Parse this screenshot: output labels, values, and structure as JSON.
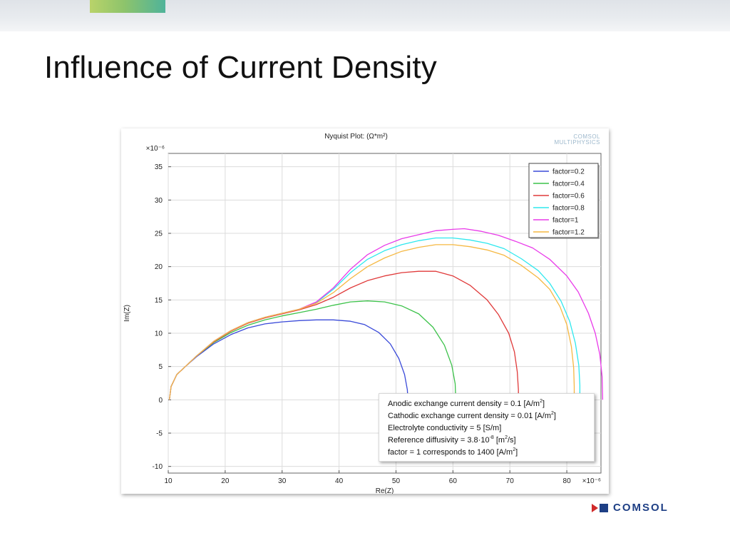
{
  "slide": {
    "title": "Influence of Current Density"
  },
  "watermark": {
    "line1": "COMSOL",
    "line2": "MULTIPHYSICS"
  },
  "brand": {
    "name": "COMSOL",
    "mark_colors": [
      "#d02a2a",
      "#1e3f85"
    ]
  },
  "info_box": {
    "lines": [
      {
        "text": "Anodic exchange current density = 0.1 [A/m",
        "sup": "2",
        "after": "]"
      },
      {
        "text": "Cathodic exchange current density = 0.01 [A/m",
        "sup": "2",
        "after": "]"
      },
      {
        "text": "Electrolyte conductivity = 5 [S/m]",
        "sup": "",
        "after": ""
      },
      {
        "text": "Reference diffusivity = 3.8·10",
        "sup": "-8",
        "after": " [m",
        "sup2": "2",
        "after2": "/s]"
      },
      {
        "text": "factor = 1 corresponds to 1400 [A/m",
        "sup": "2",
        "after": "]"
      }
    ]
  },
  "chart_data": {
    "type": "line",
    "title": "Nyquist Plot:  (Ω*m²)",
    "xlabel": "Re(Z)",
    "ylabel": "Im(Z)",
    "x_multiplier": "×10⁻⁶",
    "y_multiplier": "×10⁻⁶",
    "xlim": [
      10,
      86
    ],
    "ylim": [
      -11,
      37
    ],
    "xticks": [
      10,
      20,
      30,
      40,
      50,
      60,
      70,
      80
    ],
    "yticks": [
      -10,
      -5,
      0,
      5,
      10,
      15,
      20,
      25,
      30,
      35
    ],
    "grid": true,
    "legend_position": "top-right",
    "series": [
      {
        "name": "factor=0.2",
        "color": "#3b4bd9",
        "points": [
          [
            10.2,
            0
          ],
          [
            10.5,
            2
          ],
          [
            11.5,
            3.8
          ],
          [
            13,
            5
          ],
          [
            15,
            6.5
          ],
          [
            18,
            8.4
          ],
          [
            21,
            9.8
          ],
          [
            24,
            10.8
          ],
          [
            27,
            11.4
          ],
          [
            30,
            11.7
          ],
          [
            33,
            11.9
          ],
          [
            36,
            12.0
          ],
          [
            39,
            12.0
          ],
          [
            42,
            11.8
          ],
          [
            44.5,
            11.3
          ],
          [
            47,
            10.1
          ],
          [
            49,
            8.4
          ],
          [
            50.5,
            6.2
          ],
          [
            51.5,
            3.8
          ],
          [
            52,
            1.5
          ],
          [
            52.1,
            0
          ]
        ]
      },
      {
        "name": "factor=0.4",
        "color": "#3cc24a",
        "points": [
          [
            10.2,
            0
          ],
          [
            10.5,
            2
          ],
          [
            11.5,
            3.8
          ],
          [
            13,
            5
          ],
          [
            15,
            6.6
          ],
          [
            18,
            8.6
          ],
          [
            21,
            10.1
          ],
          [
            24,
            11.2
          ],
          [
            27,
            12
          ],
          [
            30,
            12.6
          ],
          [
            33,
            13.1
          ],
          [
            36,
            13.6
          ],
          [
            39,
            14.2
          ],
          [
            42,
            14.7
          ],
          [
            45,
            14.85
          ],
          [
            48,
            14.7
          ],
          [
            51,
            14.1
          ],
          [
            54,
            12.9
          ],
          [
            56.5,
            10.9
          ],
          [
            58.5,
            8.2
          ],
          [
            59.8,
            5.2
          ],
          [
            60.4,
            2.4
          ],
          [
            60.5,
            0
          ]
        ]
      },
      {
        "name": "factor=0.6",
        "color": "#e03a3a",
        "points": [
          [
            10.2,
            0
          ],
          [
            10.5,
            2
          ],
          [
            11.5,
            3.8
          ],
          [
            13,
            5
          ],
          [
            15,
            6.6
          ],
          [
            18,
            8.7
          ],
          [
            21,
            10.3
          ],
          [
            24,
            11.5
          ],
          [
            27,
            12.3
          ],
          [
            30,
            12.9
          ],
          [
            33,
            13.5
          ],
          [
            36,
            14.3
          ],
          [
            39,
            15.4
          ],
          [
            42,
            16.8
          ],
          [
            45,
            17.9
          ],
          [
            48,
            18.6
          ],
          [
            51,
            19.1
          ],
          [
            54,
            19.3
          ],
          [
            57,
            19.3
          ],
          [
            60,
            18.6
          ],
          [
            63,
            17.2
          ],
          [
            66,
            15
          ],
          [
            68,
            12.8
          ],
          [
            69.8,
            10
          ],
          [
            70.8,
            7.2
          ],
          [
            71.3,
            4.2
          ],
          [
            71.5,
            1.5
          ],
          [
            71.5,
            0
          ]
        ]
      },
      {
        "name": "factor=0.8",
        "color": "#2ee8ee",
        "points": [
          [
            10.2,
            0
          ],
          [
            10.5,
            2
          ],
          [
            11.5,
            3.8
          ],
          [
            13,
            5
          ],
          [
            15,
            6.6
          ],
          [
            18,
            8.8
          ],
          [
            21,
            10.4
          ],
          [
            24,
            11.6
          ],
          [
            27,
            12.4
          ],
          [
            30,
            13
          ],
          [
            33,
            13.6
          ],
          [
            36,
            14.6
          ],
          [
            39,
            16.6
          ],
          [
            42,
            19.1
          ],
          [
            45,
            21.1
          ],
          [
            48,
            22.4
          ],
          [
            51,
            23.3
          ],
          [
            54,
            23.9
          ],
          [
            57,
            24.3
          ],
          [
            60,
            24.3
          ],
          [
            63,
            24
          ],
          [
            66,
            23.5
          ],
          [
            69,
            22.7
          ],
          [
            72,
            21.2
          ],
          [
            75,
            19.4
          ],
          [
            77,
            17.5
          ],
          [
            79,
            14.8
          ],
          [
            80.5,
            11.8
          ],
          [
            81.5,
            8.5
          ],
          [
            82.1,
            5.2
          ],
          [
            82.3,
            2.2
          ],
          [
            82.3,
            0
          ]
        ]
      },
      {
        "name": "factor=1",
        "color": "#e93ae9",
        "points": [
          [
            10.2,
            0
          ],
          [
            10.5,
            2
          ],
          [
            11.5,
            3.8
          ],
          [
            13,
            5
          ],
          [
            15,
            6.6
          ],
          [
            18,
            8.8
          ],
          [
            21,
            10.4
          ],
          [
            24,
            11.6
          ],
          [
            27,
            12.4
          ],
          [
            30,
            13
          ],
          [
            33,
            13.6
          ],
          [
            36,
            14.7
          ],
          [
            39,
            16.8
          ],
          [
            42,
            19.6
          ],
          [
            45,
            21.8
          ],
          [
            48,
            23.2
          ],
          [
            51,
            24.2
          ],
          [
            54,
            24.8
          ],
          [
            57,
            25.4
          ],
          [
            60,
            25.6
          ],
          [
            62,
            25.7
          ],
          [
            65,
            25.3
          ],
          [
            68,
            24.7
          ],
          [
            71,
            23.8
          ],
          [
            74,
            22.8
          ],
          [
            77,
            21.1
          ],
          [
            80,
            18.6
          ],
          [
            82,
            16.2
          ],
          [
            83.8,
            13
          ],
          [
            85,
            10
          ],
          [
            85.8,
            6.8
          ],
          [
            86.2,
            3.5
          ],
          [
            86.3,
            0
          ]
        ]
      },
      {
        "name": "factor=1.2",
        "color": "#f5b842",
        "points": [
          [
            10.2,
            0
          ],
          [
            10.5,
            2
          ],
          [
            11.5,
            3.8
          ],
          [
            13,
            5
          ],
          [
            15,
            6.6
          ],
          [
            18,
            8.8
          ],
          [
            21,
            10.4
          ],
          [
            24,
            11.6
          ],
          [
            27,
            12.4
          ],
          [
            30,
            13
          ],
          [
            33,
            13.6
          ],
          [
            36,
            14.5
          ],
          [
            39,
            16.1
          ],
          [
            42,
            18.2
          ],
          [
            45,
            20
          ],
          [
            48,
            21.3
          ],
          [
            51,
            22.3
          ],
          [
            54,
            22.9
          ],
          [
            57,
            23.3
          ],
          [
            60,
            23.3
          ],
          [
            63,
            23
          ],
          [
            66,
            22.5
          ],
          [
            69,
            21.7
          ],
          [
            72,
            20.2
          ],
          [
            75,
            18.3
          ],
          [
            77,
            16.6
          ],
          [
            78.8,
            14
          ],
          [
            80,
            11.3
          ],
          [
            80.8,
            8
          ],
          [
            81.2,
            4.8
          ],
          [
            81.3,
            2
          ],
          [
            81.3,
            0
          ]
        ]
      }
    ]
  }
}
